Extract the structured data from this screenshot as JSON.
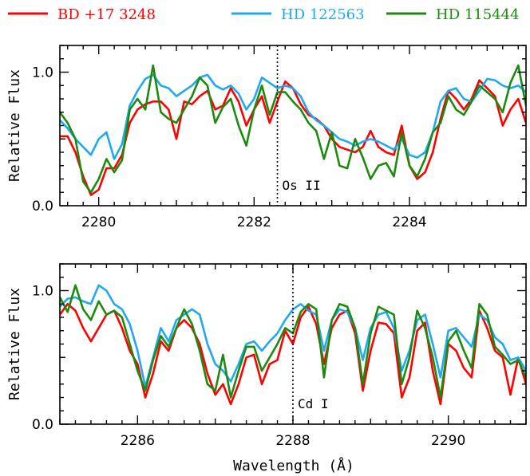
{
  "legend": [
    {
      "name": "BD +17 3248",
      "color": "#ff0000"
    },
    {
      "name": "HD 122563",
      "color": "#1fa9f0"
    },
    {
      "name": "HD 115444",
      "color": "#1b8a0e"
    }
  ],
  "xlabel": "Wavelength (Å)",
  "chart_data": [
    {
      "type": "line",
      "title": "",
      "ylabel": "Relative Flux",
      "xlim": [
        2279.5,
        2285.5
      ],
      "ylim": [
        0.0,
        1.2
      ],
      "xticks": [
        2280,
        2282,
        2284
      ],
      "yticks": [
        0.0,
        1.0
      ],
      "ytick_labels": [
        "0.0",
        "1.0"
      ],
      "annotation": {
        "label": "Os II",
        "x": 2282.3
      },
      "series": [
        {
          "name": "BD +17 3248",
          "color": "#ff0000",
          "x": [
            2279.5,
            2279.6,
            2279.7,
            2279.8,
            2279.9,
            2280.0,
            2280.1,
            2280.2,
            2280.3,
            2280.4,
            2280.5,
            2280.6,
            2280.7,
            2280.8,
            2280.9,
            2281.0,
            2281.1,
            2281.2,
            2281.3,
            2281.4,
            2281.5,
            2281.6,
            2281.7,
            2281.8,
            2281.9,
            2282.0,
            2282.1,
            2282.2,
            2282.3,
            2282.4,
            2282.5,
            2282.6,
            2282.7,
            2282.8,
            2282.9,
            2283.0,
            2283.1,
            2283.2,
            2283.3,
            2283.4,
            2283.5,
            2283.6,
            2283.7,
            2283.8,
            2283.9,
            2284.0,
            2284.1,
            2284.2,
            2284.3,
            2284.4,
            2284.5,
            2284.6,
            2284.7,
            2284.8,
            2284.9,
            2285.0,
            2285.1,
            2285.2,
            2285.3,
            2285.4,
            2285.5
          ],
          "y": [
            0.52,
            0.52,
            0.4,
            0.22,
            0.08,
            0.12,
            0.28,
            0.28,
            0.38,
            0.62,
            0.72,
            0.76,
            0.78,
            0.78,
            0.72,
            0.5,
            0.78,
            0.76,
            0.82,
            0.86,
            0.72,
            0.75,
            0.88,
            0.78,
            0.6,
            0.72,
            0.82,
            0.62,
            0.78,
            0.93,
            0.88,
            0.76,
            0.68,
            0.65,
            0.6,
            0.5,
            0.44,
            0.42,
            0.4,
            0.44,
            0.56,
            0.44,
            0.4,
            0.38,
            0.6,
            0.3,
            0.2,
            0.25,
            0.4,
            0.65,
            0.86,
            0.8,
            0.72,
            0.8,
            0.94,
            0.88,
            0.82,
            0.6,
            0.72,
            0.8,
            0.62
          ]
        },
        {
          "name": "HD 122563",
          "color": "#1fa9f0",
          "x": [
            2279.5,
            2279.6,
            2279.7,
            2279.8,
            2279.9,
            2280.0,
            2280.1,
            2280.2,
            2280.3,
            2280.4,
            2280.5,
            2280.6,
            2280.7,
            2280.8,
            2280.9,
            2281.0,
            2281.1,
            2281.2,
            2281.3,
            2281.4,
            2281.5,
            2281.6,
            2281.7,
            2281.8,
            2281.9,
            2282.0,
            2282.1,
            2282.2,
            2282.3,
            2282.4,
            2282.5,
            2282.6,
            2282.7,
            2282.8,
            2282.9,
            2283.0,
            2283.1,
            2283.2,
            2283.3,
            2283.4,
            2283.5,
            2283.6,
            2283.7,
            2283.8,
            2283.9,
            2284.0,
            2284.1,
            2284.2,
            2284.3,
            2284.4,
            2284.5,
            2284.6,
            2284.7,
            2284.8,
            2284.9,
            2285.0,
            2285.1,
            2285.2,
            2285.3,
            2285.4,
            2285.5
          ],
          "y": [
            0.64,
            0.58,
            0.5,
            0.44,
            0.38,
            0.5,
            0.55,
            0.35,
            0.46,
            0.75,
            0.86,
            0.95,
            0.98,
            0.9,
            0.88,
            0.82,
            0.86,
            0.9,
            0.96,
            0.98,
            0.9,
            0.87,
            0.9,
            0.84,
            0.72,
            0.8,
            0.96,
            0.92,
            0.88,
            0.9,
            0.88,
            0.82,
            0.7,
            0.64,
            0.6,
            0.55,
            0.5,
            0.48,
            0.45,
            0.48,
            0.5,
            0.48,
            0.45,
            0.42,
            0.5,
            0.38,
            0.36,
            0.4,
            0.55,
            0.78,
            0.86,
            0.88,
            0.8,
            0.78,
            0.86,
            0.95,
            0.94,
            0.9,
            0.88,
            0.9,
            0.85
          ]
        },
        {
          "name": "HD 115444",
          "color": "#1b8a0e",
          "x": [
            2279.5,
            2279.6,
            2279.7,
            2279.8,
            2279.9,
            2280.0,
            2280.1,
            2280.2,
            2280.3,
            2280.4,
            2280.5,
            2280.6,
            2280.7,
            2280.8,
            2280.9,
            2281.0,
            2281.1,
            2281.2,
            2281.3,
            2281.4,
            2281.5,
            2281.6,
            2281.7,
            2281.8,
            2281.9,
            2282.0,
            2282.1,
            2282.2,
            2282.3,
            2282.4,
            2282.5,
            2282.6,
            2282.7,
            2282.8,
            2282.9,
            2283.0,
            2283.1,
            2283.2,
            2283.3,
            2283.4,
            2283.5,
            2283.6,
            2283.7,
            2283.8,
            2283.9,
            2284.0,
            2284.1,
            2284.2,
            2284.3,
            2284.4,
            2284.5,
            2284.6,
            2284.7,
            2284.8,
            2284.9,
            2285.0,
            2285.1,
            2285.2,
            2285.3,
            2285.4,
            2285.5
          ],
          "y": [
            0.7,
            0.62,
            0.5,
            0.18,
            0.1,
            0.2,
            0.35,
            0.25,
            0.34,
            0.72,
            0.8,
            0.72,
            1.05,
            0.7,
            0.65,
            0.62,
            0.72,
            0.82,
            0.96,
            0.9,
            0.62,
            0.74,
            0.8,
            0.6,
            0.45,
            0.72,
            0.9,
            0.68,
            0.85,
            0.85,
            0.78,
            0.72,
            0.62,
            0.56,
            0.35,
            0.55,
            0.3,
            0.28,
            0.5,
            0.36,
            0.2,
            0.3,
            0.32,
            0.22,
            0.55,
            0.3,
            0.22,
            0.35,
            0.55,
            0.62,
            0.82,
            0.72,
            0.68,
            0.78,
            0.9,
            0.85,
            0.8,
            0.7,
            0.92,
            1.05,
            0.75
          ]
        }
      ]
    },
    {
      "type": "line",
      "title": "",
      "ylabel": "Relative Flux",
      "xlim": [
        2285.0,
        2291.0
      ],
      "ylim": [
        0.0,
        1.2
      ],
      "xticks": [
        2286,
        2288,
        2290
      ],
      "yticks": [
        0.0,
        1.0
      ],
      "ytick_labels": [
        "0.0",
        "1.0"
      ],
      "annotation": {
        "label": "Cd I",
        "x": 2288.0
      },
      "series": [
        {
          "name": "BD +17 3248",
          "color": "#ff0000",
          "x": [
            2285.0,
            2285.1,
            2285.2,
            2285.3,
            2285.4,
            2285.5,
            2285.6,
            2285.7,
            2285.8,
            2285.9,
            2286.0,
            2286.1,
            2286.2,
            2286.3,
            2286.4,
            2286.5,
            2286.6,
            2286.7,
            2286.8,
            2286.9,
            2287.0,
            2287.1,
            2287.2,
            2287.3,
            2287.4,
            2287.5,
            2287.6,
            2287.7,
            2287.8,
            2287.9,
            2288.0,
            2288.1,
            2288.2,
            2288.3,
            2288.4,
            2288.5,
            2288.6,
            2288.7,
            2288.8,
            2288.9,
            2289.0,
            2289.1,
            2289.2,
            2289.3,
            2289.4,
            2289.5,
            2289.6,
            2289.7,
            2289.8,
            2289.9,
            2290.0,
            2290.1,
            2290.2,
            2290.3,
            2290.4,
            2290.5,
            2290.6,
            2290.7,
            2290.8,
            2290.9,
            2291.0
          ],
          "y": [
            0.82,
            0.9,
            0.85,
            0.72,
            0.62,
            0.72,
            0.82,
            0.85,
            0.72,
            0.55,
            0.45,
            0.2,
            0.38,
            0.62,
            0.55,
            0.72,
            0.78,
            0.72,
            0.6,
            0.38,
            0.22,
            0.3,
            0.15,
            0.3,
            0.5,
            0.52,
            0.3,
            0.45,
            0.48,
            0.7,
            0.6,
            0.8,
            0.88,
            0.75,
            0.45,
            0.72,
            0.82,
            0.85,
            0.68,
            0.25,
            0.55,
            0.76,
            0.75,
            0.68,
            0.2,
            0.35,
            0.7,
            0.76,
            0.4,
            0.15,
            0.6,
            0.55,
            0.42,
            0.35,
            0.85,
            0.72,
            0.55,
            0.5,
            0.22,
            0.5,
            0.3
          ]
        },
        {
          "name": "HD 122563",
          "color": "#1fa9f0",
          "x": [
            2285.0,
            2285.1,
            2285.2,
            2285.3,
            2285.4,
            2285.5,
            2285.6,
            2285.7,
            2285.8,
            2285.9,
            2286.0,
            2286.1,
            2286.2,
            2286.3,
            2286.4,
            2286.5,
            2286.6,
            2286.7,
            2286.8,
            2286.9,
            2287.0,
            2287.1,
            2287.2,
            2287.3,
            2287.4,
            2287.5,
            2287.6,
            2287.7,
            2287.8,
            2287.9,
            2288.0,
            2288.1,
            2288.2,
            2288.3,
            2288.4,
            2288.5,
            2288.6,
            2288.7,
            2288.8,
            2288.9,
            2289.0,
            2289.1,
            2289.2,
            2289.3,
            2289.4,
            2289.5,
            2289.6,
            2289.7,
            2289.8,
            2289.9,
            2290.0,
            2290.1,
            2290.2,
            2290.3,
            2290.4,
            2290.5,
            2290.6,
            2290.7,
            2290.8,
            2290.9,
            2291.0
          ],
          "y": [
            0.88,
            0.94,
            0.95,
            0.92,
            0.9,
            1.04,
            1.0,
            0.9,
            0.86,
            0.75,
            0.55,
            0.28,
            0.5,
            0.72,
            0.62,
            0.78,
            0.82,
            0.86,
            0.82,
            0.6,
            0.45,
            0.4,
            0.32,
            0.45,
            0.6,
            0.62,
            0.55,
            0.62,
            0.68,
            0.78,
            0.86,
            0.9,
            0.85,
            0.82,
            0.55,
            0.78,
            0.86,
            0.84,
            0.72,
            0.48,
            0.72,
            0.82,
            0.84,
            0.72,
            0.4,
            0.55,
            0.78,
            0.82,
            0.6,
            0.35,
            0.7,
            0.72,
            0.65,
            0.58,
            0.82,
            0.78,
            0.65,
            0.6,
            0.48,
            0.5,
            0.4
          ]
        },
        {
          "name": "HD 115444",
          "color": "#1b8a0e",
          "x": [
            2285.0,
            2285.1,
            2285.2,
            2285.3,
            2285.4,
            2285.5,
            2285.6,
            2285.7,
            2285.8,
            2285.9,
            2286.0,
            2286.1,
            2286.2,
            2286.3,
            2286.4,
            2286.5,
            2286.6,
            2286.7,
            2286.8,
            2286.9,
            2287.0,
            2287.1,
            2287.2,
            2287.3,
            2287.4,
            2287.5,
            2287.6,
            2287.7,
            2287.8,
            2287.9,
            2288.0,
            2288.1,
            2288.2,
            2288.3,
            2288.4,
            2288.5,
            2288.6,
            2288.7,
            2288.8,
            2288.9,
            2289.0,
            2289.1,
            2289.2,
            2289.3,
            2289.4,
            2289.5,
            2289.6,
            2289.7,
            2289.8,
            2289.9,
            2290.0,
            2290.1,
            2290.2,
            2290.3,
            2290.4,
            2290.5,
            2290.6,
            2290.7,
            2290.8,
            2290.9,
            2291.0
          ],
          "y": [
            0.95,
            0.84,
            1.04,
            0.86,
            0.78,
            0.92,
            0.82,
            0.85,
            0.8,
            0.6,
            0.4,
            0.25,
            0.48,
            0.66,
            0.58,
            0.72,
            0.86,
            0.75,
            0.55,
            0.3,
            0.25,
            0.52,
            0.2,
            0.4,
            0.58,
            0.58,
            0.4,
            0.5,
            0.6,
            0.72,
            0.68,
            0.84,
            0.9,
            0.86,
            0.35,
            0.78,
            0.9,
            0.88,
            0.72,
            0.3,
            0.68,
            0.88,
            0.85,
            0.82,
            0.3,
            0.5,
            0.85,
            0.72,
            0.5,
            0.2,
            0.62,
            0.7,
            0.55,
            0.42,
            0.9,
            0.82,
            0.58,
            0.52,
            0.45,
            0.48,
            0.35
          ]
        }
      ]
    }
  ]
}
